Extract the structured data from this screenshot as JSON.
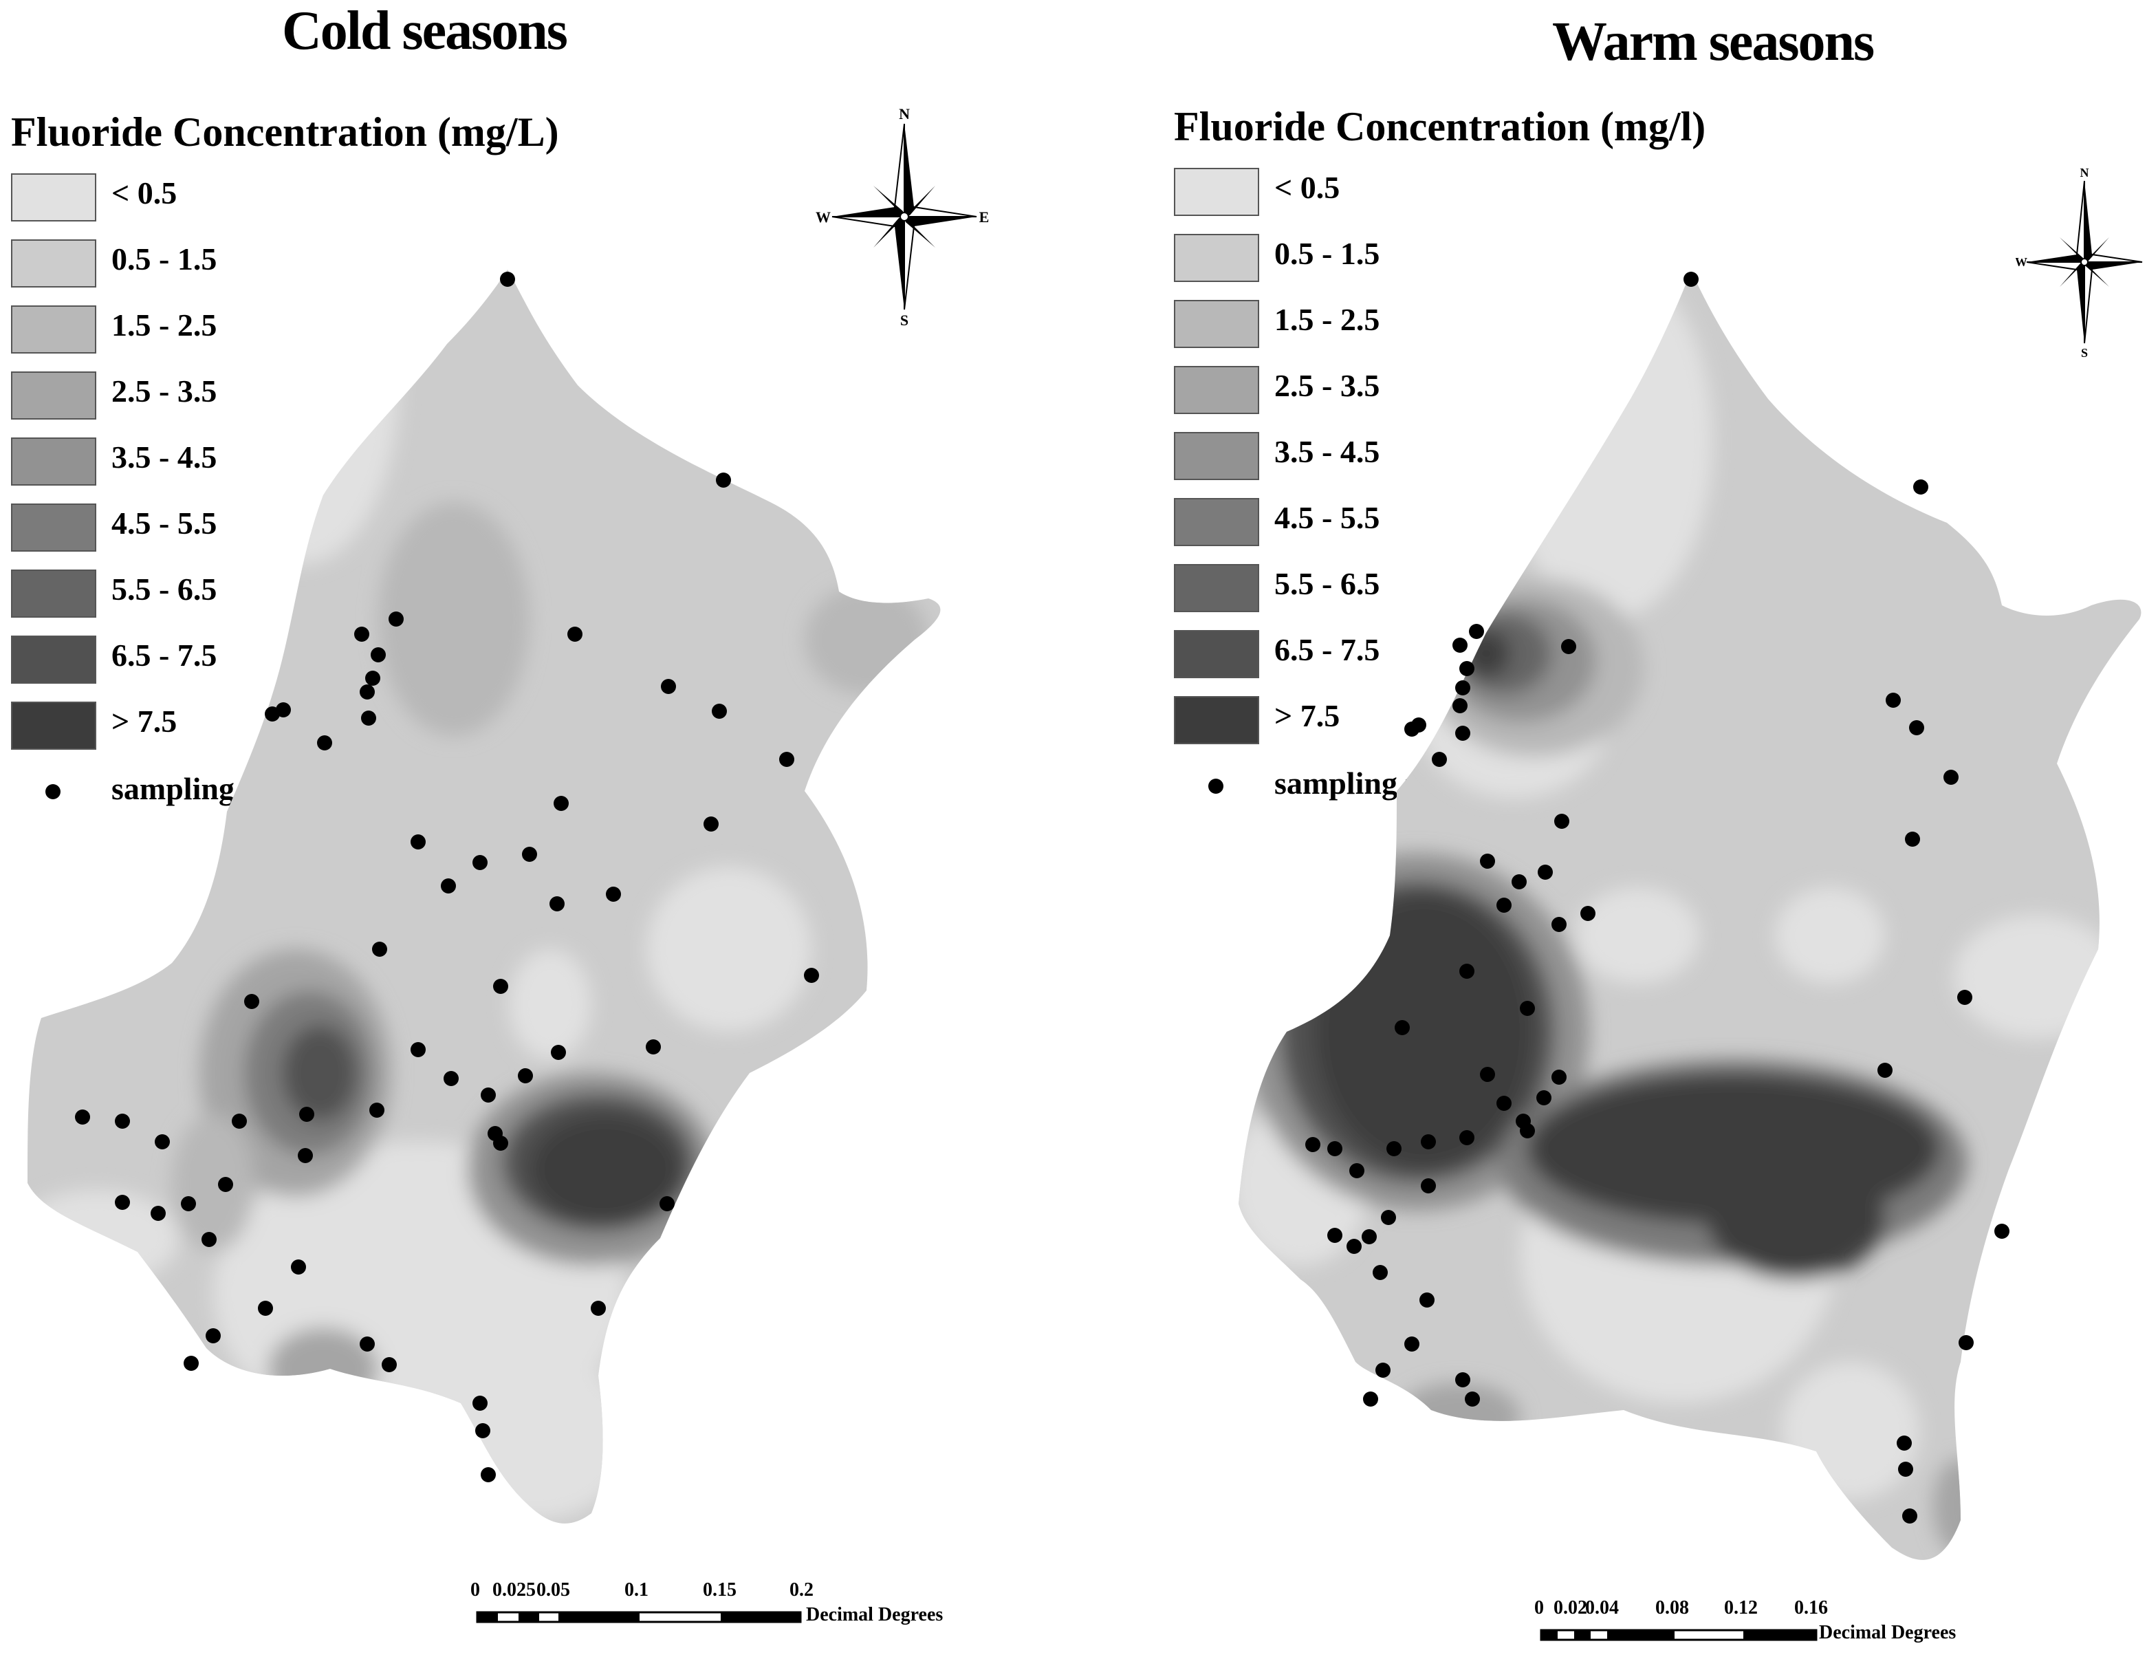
{
  "legend_colors": [
    "#e1e1e1",
    "#cccccc",
    "#b8b8b8",
    "#a5a5a5",
    "#929292",
    "#7b7b7b",
    "#656565",
    "#515151",
    "#3c3c3c"
  ],
  "left": {
    "title": "Cold seasons",
    "legend_title": "Fluoride Concentration (mg/L)",
    "legend_items": [
      {
        "label": "< 0.5"
      },
      {
        "label": "0.5 - 1.5"
      },
      {
        "label": "1.5 - 2.5"
      },
      {
        "label": "2.5 - 3.5"
      },
      {
        "label": "3.5 - 4.5"
      },
      {
        "label": "4.5 - 5.5"
      },
      {
        "label": "5.5 - 6.5"
      },
      {
        "label": "6.5 - 7.5"
      },
      {
        "label": "> 7.5"
      }
    ],
    "sampling_label": "sampling points",
    "compass": {
      "n": "N",
      "s": "S",
      "e": "E",
      "w": "W"
    },
    "scale": {
      "ticks": [
        "0",
        "0.025",
        "0.05",
        "0.1",
        "0.15",
        "0.2"
      ],
      "unit": "Decimal Degrees"
    }
  },
  "right": {
    "title": "Warm seasons",
    "legend_title": "Fluoride Concentration (mg/l)",
    "legend_items": [
      {
        "label": "< 0.5"
      },
      {
        "label": "0.5 - 1.5"
      },
      {
        "label": "1.5 - 2.5"
      },
      {
        "label": "2.5 - 3.5"
      },
      {
        "label": "3.5 - 4.5"
      },
      {
        "label": "4.5 - 5.5"
      },
      {
        "label": "5.5 - 6.5"
      },
      {
        "label": "6.5 - 7.5"
      },
      {
        "label": "> 7.5"
      }
    ],
    "sampling_label": "sampling points",
    "compass": {
      "n": "N",
      "s": "S",
      "e": "",
      "w": "W"
    },
    "scale": {
      "ticks": [
        "0",
        "0.02",
        "0.04",
        "0.08",
        "0.12",
        "0.16"
      ],
      "unit": "Decimal Degrees"
    }
  }
}
